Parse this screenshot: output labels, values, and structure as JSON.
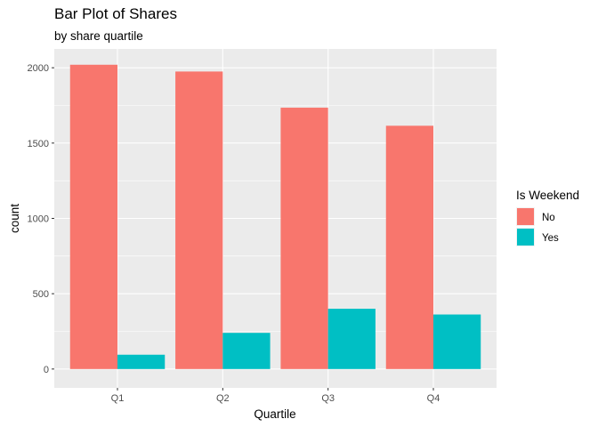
{
  "chart_data": {
    "type": "bar",
    "title": "Bar Plot of Shares",
    "subtitle": "by share quartile",
    "xlabel": "Quartile",
    "ylabel": "count",
    "categories": [
      "Q1",
      "Q2",
      "Q3",
      "Q4"
    ],
    "series": [
      {
        "name": "No",
        "color": "#F8766D",
        "values": [
          2020,
          1975,
          1735,
          1615
        ]
      },
      {
        "name": "Yes",
        "color": "#00BFC4",
        "values": [
          95,
          240,
          400,
          362
        ]
      }
    ],
    "yticks": [
      0,
      500,
      1000,
      1500,
      2000
    ],
    "ylim": [
      -125,
      2125
    ],
    "grid": true,
    "legend": {
      "title": "Is Weekend",
      "position": "right"
    },
    "colors": {
      "panel": "#EBEBEB",
      "grid": "#FFFFFF"
    }
  }
}
